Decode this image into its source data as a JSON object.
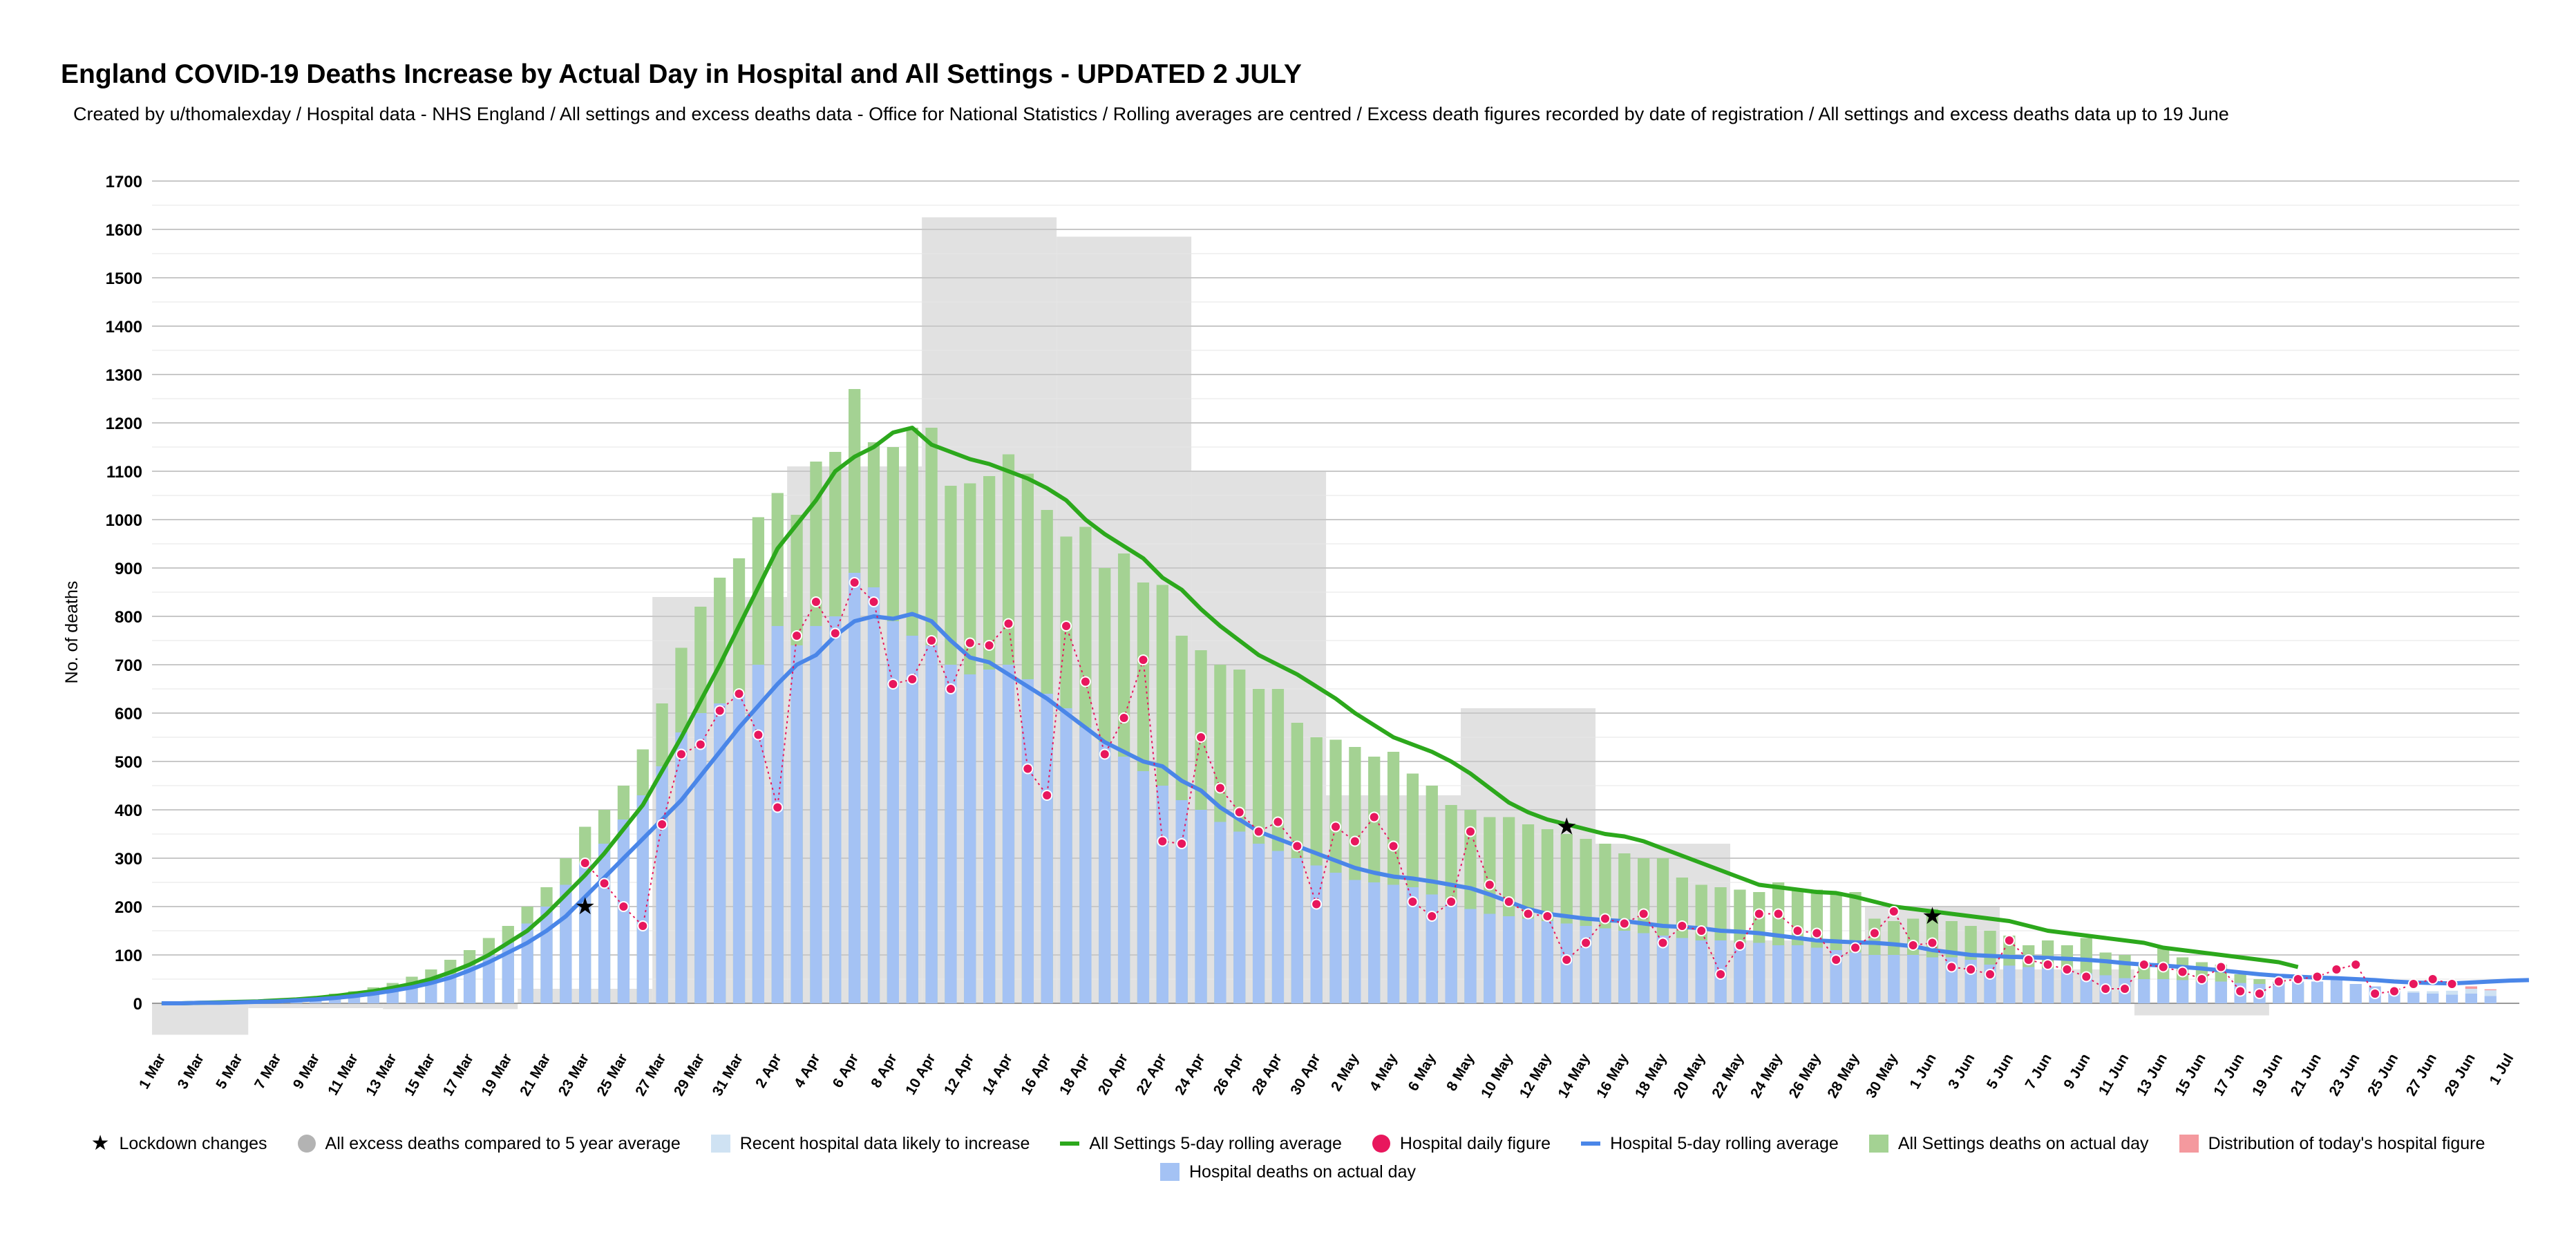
{
  "title": "England COVID-19 Deaths Increase by Actual Day in Hospital and All Settings - UPDATED 2 JULY",
  "subtitle": "Created by u/thomalexday / Hospital data - NHS England / All settings and excess deaths data - Office for National Statistics / Rolling averages are centred / Excess death figures recorded by date of registration / All settings and excess deaths data up to 19 June",
  "legend": [
    {
      "label": "Lockdown changes",
      "symbol": "star",
      "color": "#000000"
    },
    {
      "label": "All excess deaths compared to 5 year average",
      "symbol": "dot",
      "color": "#b3b3b3"
    },
    {
      "label": "Recent hospital data likely to increase",
      "symbol": "square",
      "color": "#cfe2f3"
    },
    {
      "label": "All Settings 5-day rolling average",
      "symbol": "line",
      "color": "#2ca81c"
    },
    {
      "label": "Hospital daily figure",
      "symbol": "dot",
      "color": "#e8175d"
    },
    {
      "label": "Hospital 5-day rolling average",
      "symbol": "line",
      "color": "#4a86e8"
    },
    {
      "label": "All Settings deaths on actual day",
      "symbol": "square",
      "color": "#a4d293"
    },
    {
      "label": "Distribution of today's hospital figure",
      "symbol": "square",
      "color": "#f4999e"
    },
    {
      "label": "Hospital deaths on actual day",
      "symbol": "square",
      "color": "#a4c2f4"
    }
  ],
  "chart_data": {
    "type": "bar",
    "title": "England COVID-19 Deaths Increase by Actual Day in Hospital and All Settings - UPDATED 2 JULY",
    "ylabel": "No. of deaths",
    "xlabel": "",
    "ylim": [
      -70,
      1700
    ],
    "yticks": [
      0,
      100,
      200,
      300,
      400,
      500,
      600,
      700,
      800,
      900,
      1000,
      1100,
      1200,
      1300,
      1400,
      1500,
      1600,
      1700
    ],
    "grid": true,
    "legend_position": "bottom",
    "x_start": "1 Mar",
    "x_end": "1 Jul",
    "x_tick_labels": [
      "1 Mar",
      "3 Mar",
      "5 Mar",
      "7 Mar",
      "9 Mar",
      "11 Mar",
      "13 Mar",
      "15 Mar",
      "17 Mar",
      "19 Mar",
      "21 Mar",
      "23 Mar",
      "25 Mar",
      "27 Mar",
      "29 Mar",
      "31 Mar",
      "2 Apr",
      "4 Apr",
      "6 Apr",
      "8 Apr",
      "10 Apr",
      "12 Apr",
      "14 Apr",
      "16 Apr",
      "18 Apr",
      "20 Apr",
      "22 Apr",
      "24 Apr",
      "26 Apr",
      "28 Apr",
      "30 Apr",
      "2 May",
      "4 May",
      "6 May",
      "8 May",
      "10 May",
      "12 May",
      "14 May",
      "16 May",
      "18 May",
      "20 May",
      "22 May",
      "24 May",
      "26 May",
      "28 May",
      "30 May",
      "1 Jun",
      "3 Jun",
      "5 Jun",
      "7 Jun",
      "9 Jun",
      "11 Jun",
      "13 Jun",
      "15 Jun",
      "17 Jun",
      "19 Jun",
      "21 Jun",
      "23 Jun",
      "25 Jun",
      "27 Jun",
      "29 Jun",
      "1 Jul"
    ],
    "excess_deaths_weekly": [
      {
        "start": "28 Feb",
        "end": "5 Mar",
        "value": -65
      },
      {
        "start": "6 Mar",
        "end": "12 Mar",
        "value": -10
      },
      {
        "start": "13 Mar",
        "end": "19 Mar",
        "value": -12
      },
      {
        "start": "20 Mar",
        "end": "26 Mar",
        "value": 30
      },
      {
        "start": "27 Mar",
        "end": "2 Apr",
        "value": 840
      },
      {
        "start": "3 Apr",
        "end": "9 Apr",
        "value": 1110
      },
      {
        "start": "10 Apr",
        "end": "16 Apr",
        "value": 1625
      },
      {
        "start": "17 Apr",
        "end": "23 Apr",
        "value": 1585
      },
      {
        "start": "24 Apr",
        "end": "30 Apr",
        "value": 1100
      },
      {
        "start": "1 May",
        "end": "7 May",
        "value": 430
      },
      {
        "start": "8 May",
        "end": "14 May",
        "value": 610
      },
      {
        "start": "15 May",
        "end": "21 May",
        "value": 330
      },
      {
        "start": "22 May",
        "end": "28 May",
        "value": 130
      },
      {
        "start": "29 May",
        "end": "4 Jun",
        "value": 200
      },
      {
        "start": "5 Jun",
        "end": "11 Jun",
        "value": 70
      },
      {
        "start": "12 Jun",
        "end": "18 Jun",
        "value": -25
      }
    ],
    "series": [
      {
        "name": "All Settings deaths on actual day",
        "type": "bar",
        "color": "#a4d293",
        "values": [
          0,
          0,
          1,
          2,
          3,
          5,
          7,
          10,
          14,
          20,
          25,
          33,
          42,
          55,
          70,
          90,
          110,
          135,
          160,
          200,
          240,
          300,
          365,
          400,
          450,
          525,
          620,
          735,
          820,
          880,
          920,
          1005,
          1055,
          1010,
          1120,
          1140,
          1270,
          1160,
          1150,
          1190,
          1190,
          1070,
          1075,
          1090,
          1135,
          1095,
          1020,
          965,
          985,
          900,
          930,
          870,
          865,
          760,
          730,
          700,
          690,
          650,
          650,
          580,
          550,
          545,
          530,
          510,
          520,
          475,
          450,
          410,
          400,
          385,
          385,
          370,
          360,
          350,
          340,
          330,
          310,
          300,
          300,
          260,
          245,
          240,
          235,
          230,
          250,
          235,
          235,
          225,
          230,
          175,
          170,
          175,
          195,
          170,
          160,
          150,
          140,
          120,
          130,
          120,
          135,
          105,
          100,
          85,
          115,
          95,
          85,
          80,
          60,
          50,
          45,
          40,
          0,
          0,
          0,
          0,
          0,
          0,
          0,
          0,
          0,
          0,
          0,
          0
        ]
      },
      {
        "name": "Hospital deaths on actual day",
        "type": "bar",
        "color": "#a4c2f4",
        "values": [
          0,
          0,
          1,
          2,
          2,
          3,
          4,
          6,
          9,
          12,
          16,
          20,
          28,
          35,
          45,
          60,
          78,
          100,
          125,
          165,
          200,
          245,
          290,
          330,
          380,
          430,
          490,
          560,
          600,
          620,
          640,
          700,
          780,
          740,
          780,
          800,
          890,
          860,
          790,
          760,
          740,
          700,
          680,
          690,
          700,
          670,
          640,
          610,
          570,
          540,
          510,
          480,
          450,
          420,
          400,
          375,
          355,
          330,
          315,
          300,
          285,
          270,
          255,
          250,
          245,
          240,
          225,
          210,
          195,
          185,
          180,
          175,
          170,
          165,
          160,
          155,
          150,
          145,
          140,
          135,
          130,
          130,
          125,
          125,
          120,
          120,
          115,
          110,
          105,
          100,
          100,
          100,
          95,
          95,
          90,
          80,
          78,
          75,
          72,
          68,
          62,
          58,
          52,
          50,
          50,
          48,
          45,
          45,
          42,
          40,
          42,
          45,
          45,
          48,
          40,
          35,
          25,
          22,
          20,
          18,
          20,
          15
        ]
      },
      {
        "name": "Recent hospital data likely to increase",
        "type": "bar",
        "color": "#cfe2f3",
        "values": [
          0,
          0,
          0,
          0,
          0,
          0,
          0,
          0,
          0,
          0,
          0,
          0,
          0,
          0,
          0,
          0,
          0,
          0,
          0,
          0,
          0,
          0,
          0,
          0,
          0,
          0,
          0,
          0,
          0,
          0,
          0,
          0,
          0,
          0,
          0,
          0,
          0,
          0,
          0,
          0,
          0,
          0,
          0,
          0,
          0,
          0,
          0,
          0,
          0,
          0,
          0,
          0,
          0,
          0,
          0,
          0,
          0,
          0,
          0,
          0,
          0,
          0,
          0,
          0,
          0,
          0,
          0,
          0,
          0,
          0,
          0,
          0,
          0,
          0,
          0,
          0,
          0,
          0,
          0,
          0,
          0,
          0,
          0,
          0,
          0,
          0,
          0,
          0,
          0,
          0,
          0,
          0,
          0,
          0,
          0,
          0,
          0,
          0,
          0,
          0,
          0,
          0,
          0,
          0,
          0,
          0,
          0,
          0,
          0,
          0,
          0,
          0,
          0,
          0,
          0,
          0,
          0,
          3,
          5,
          8,
          10,
          12
        ]
      },
      {
        "name": "Distribution of today's hospital figure",
        "type": "bar",
        "color": "#f4999e",
        "values": [
          0,
          0,
          0,
          0,
          0,
          0,
          0,
          0,
          0,
          0,
          0,
          0,
          0,
          0,
          0,
          0,
          0,
          0,
          0,
          0,
          0,
          0,
          0,
          0,
          0,
          0,
          0,
          0,
          0,
          0,
          0,
          0,
          0,
          0,
          0,
          0,
          0,
          0,
          0,
          0,
          0,
          0,
          0,
          0,
          0,
          0,
          0,
          0,
          0,
          0,
          0,
          0,
          0,
          0,
          0,
          0,
          0,
          0,
          0,
          0,
          0,
          0,
          0,
          0,
          0,
          0,
          0,
          0,
          0,
          0,
          0,
          0,
          0,
          0,
          0,
          0,
          0,
          0,
          0,
          0,
          0,
          0,
          0,
          0,
          0,
          0,
          0,
          0,
          0,
          0,
          0,
          0,
          0,
          0,
          0,
          0,
          0,
          0,
          0,
          0,
          0,
          0,
          0,
          0,
          0,
          0,
          0,
          0,
          0,
          0,
          0,
          0,
          0,
          0,
          0,
          0,
          0,
          0,
          0,
          0,
          5,
          2
        ]
      },
      {
        "name": "All Settings 5-day rolling average",
        "type": "line",
        "color": "#2ca81c",
        "values": [
          0,
          0,
          1,
          2,
          3,
          4,
          6,
          8,
          11,
          15,
          20,
          25,
          32,
          40,
          50,
          64,
          80,
          100,
          125,
          150,
          185,
          225,
          265,
          310,
          360,
          410,
          480,
          550,
          625,
          700,
          780,
          860,
          940,
          990,
          1040,
          1100,
          1130,
          1150,
          1180,
          1190,
          1155,
          1140,
          1125,
          1115,
          1100,
          1085,
          1065,
          1040,
          1000,
          970,
          945,
          920,
          880,
          855,
          815,
          780,
          750,
          720,
          700,
          680,
          655,
          630,
          600,
          575,
          550,
          535,
          520,
          500,
          475,
          445,
          415,
          395,
          380,
          370,
          360,
          350,
          345,
          335,
          320,
          305,
          290,
          275,
          260,
          245,
          240,
          235,
          230,
          228,
          220,
          210,
          200,
          195,
          190,
          185,
          180,
          175,
          170,
          160,
          150,
          145,
          140,
          135,
          130,
          125,
          115,
          110,
          105,
          100,
          95,
          90,
          85,
          75,
          0,
          0,
          0,
          0,
          0,
          0,
          0,
          0,
          0,
          0,
          0,
          0
        ]
      },
      {
        "name": "Hospital 5-day rolling average",
        "type": "line",
        "color": "#4a86e8",
        "values": [
          0,
          0,
          1,
          1,
          2,
          3,
          4,
          6,
          8,
          11,
          15,
          20,
          26,
          33,
          42,
          53,
          68,
          85,
          105,
          125,
          150,
          180,
          220,
          260,
          300,
          340,
          380,
          420,
          470,
          520,
          570,
          615,
          660,
          700,
          720,
          760,
          790,
          800,
          795,
          805,
          790,
          750,
          715,
          705,
          680,
          655,
          630,
          600,
          570,
          540,
          520,
          500,
          490,
          460,
          440,
          405,
          380,
          355,
          340,
          325,
          310,
          295,
          280,
          270,
          262,
          258,
          252,
          245,
          238,
          225,
          210,
          195,
          185,
          180,
          175,
          172,
          170,
          165,
          160,
          158,
          155,
          150,
          148,
          145,
          140,
          135,
          130,
          128,
          126,
          125,
          122,
          118,
          110,
          105,
          100,
          98,
          96,
          95,
          94,
          92,
          90,
          87,
          83,
          80,
          78,
          75,
          72,
          68,
          64,
          60,
          57,
          55,
          53,
          52,
          50,
          48,
          45,
          43,
          42,
          41,
          43,
          45,
          47,
          48
        ]
      },
      {
        "name": "Hospital daily figure",
        "type": "scatter",
        "color": "#e8175d",
        "values": [
          0,
          0,
          1,
          2,
          2,
          3,
          4,
          6,
          9,
          12,
          16,
          20,
          28,
          35,
          45,
          60,
          78,
          100,
          125,
          165,
          200,
          245,
          290,
          248,
          200,
          160,
          370,
          515,
          535,
          605,
          640,
          555,
          405,
          760,
          830,
          765,
          870,
          830,
          660,
          670,
          750,
          650,
          745,
          740,
          785,
          485,
          430,
          780,
          665,
          515,
          590,
          710,
          335,
          330,
          550,
          445,
          395,
          355,
          375,
          325,
          205,
          365,
          335,
          385,
          325,
          210,
          180,
          210,
          355,
          245,
          210,
          185,
          180,
          90,
          125,
          175,
          165,
          185,
          125,
          160,
          150,
          60,
          120,
          185,
          185,
          150,
          145,
          90,
          115,
          145,
          190,
          120,
          125,
          75,
          70,
          60,
          130,
          90,
          80,
          70,
          55,
          30,
          30,
          80,
          75,
          65,
          50,
          75,
          25,
          20,
          45,
          50,
          55,
          70,
          80,
          20,
          25,
          40,
          50,
          40
        ]
      },
      {
        "name": "Lockdown changes",
        "type": "marker",
        "color": "#000000",
        "points": [
          {
            "x": "23 Mar",
            "y": 200
          },
          {
            "x": "13 May",
            "y": 365
          },
          {
            "x": "1 Jun",
            "y": 180
          }
        ]
      }
    ]
  }
}
